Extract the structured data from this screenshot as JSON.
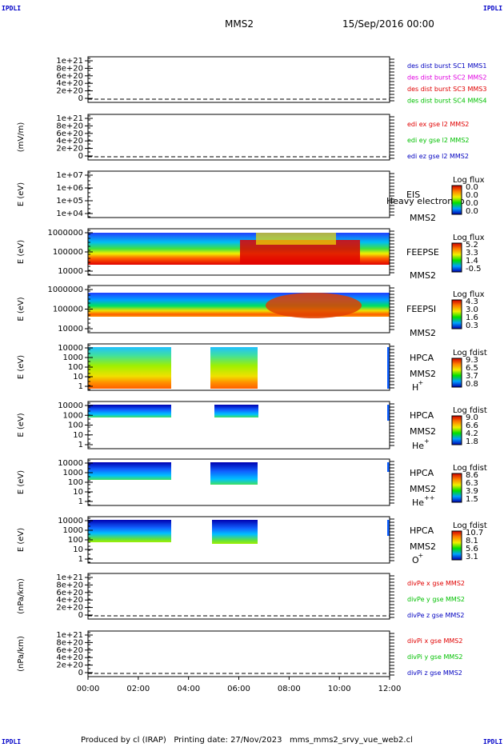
{
  "corners": {
    "tl": "IPDLI",
    "tr": "IPDLI",
    "bl": "IPDLI",
    "br": "IPDLI"
  },
  "header": {
    "title": "MMS2",
    "date": "15/Sep/2016 00:00"
  },
  "footer": {
    "text": "Produced by cl (IRAP)   Printing date: 27/Nov/2023   mms_mms2_srvy_vue_web2.cl"
  },
  "colors": {
    "red": "#e00000",
    "green": "#00c000",
    "blue": "#0000c0",
    "magenta": "#e000e0"
  },
  "chart_data": [
    {
      "type": "line",
      "panel": "density",
      "ylabel": "",
      "yticks": [
        "1e+21",
        "8e+20",
        "6e+20",
        "4e+20",
        "2e+20",
        "0"
      ],
      "series": [
        {
          "name": "des dist burst SC1 MMS1",
          "color": "#0000c0"
        },
        {
          "name": "des dist burst SC2 MMS2",
          "color": "#e000e0"
        },
        {
          "name": "des dist burst SC3 MMS3",
          "color": "#e00000"
        },
        {
          "name": "des dist burst SC4 MMS4",
          "color": "#00c000"
        }
      ]
    },
    {
      "type": "line",
      "panel": "edi",
      "ylabel": "(mV/m)",
      "yticks": [
        "1e+21",
        "8e+20",
        "6e+20",
        "4e+20",
        "2e+20",
        "0"
      ],
      "series": [
        {
          "name": "edi ex gse l2 MMS2",
          "color": "#e00000"
        },
        {
          "name": "edi ey gse l2 MMS2",
          "color": "#00c000"
        },
        {
          "name": "edi ez gse l2 MMS2",
          "color": "#0000c0"
        }
      ]
    },
    {
      "type": "heatmap",
      "panel": "eis",
      "ylabel": "E (eV)",
      "yticks": [
        "1e+07",
        "1e+06",
        "1e+05",
        "1e+04"
      ],
      "label": "EIS",
      "sublabel": "MMS2",
      "extra": "Heavy electron to",
      "cbar_title": "Log flux",
      "cbar_ticks": [
        "0.0",
        "0.0",
        "0.0",
        "0.0"
      ]
    },
    {
      "type": "heatmap",
      "panel": "feepse",
      "ylabel": "E (eV)",
      "yticks": [
        "1000000",
        "100000",
        "10000"
      ],
      "label": "FEEPSE",
      "sublabel": "MMS2",
      "cbar_title": "Log flux",
      "cbar_ticks": [
        "5.2",
        "3.3",
        "1.4",
        "-0.5"
      ]
    },
    {
      "type": "heatmap",
      "panel": "feepsi",
      "ylabel": "E (eV)",
      "yticks": [
        "1000000",
        "100000",
        "10000"
      ],
      "label": "FEEPSI",
      "sublabel": "MMS2",
      "cbar_title": "Log flux",
      "cbar_ticks": [
        "4.3",
        "3.0",
        "1.6",
        "0.3"
      ]
    },
    {
      "type": "heatmap",
      "panel": "hpca_h",
      "ylabel": "E (eV)",
      "yticks": [
        "10000",
        "1000",
        "100",
        "10",
        "1"
      ],
      "label": "HPCA",
      "sublabel": "MMS2",
      "species": "H",
      "charge": "+",
      "cbar_title": "Log fdist",
      "cbar_ticks": [
        "9.3",
        "6.5",
        "3.7",
        "0.8"
      ]
    },
    {
      "type": "heatmap",
      "panel": "hpca_he",
      "ylabel": "E (eV)",
      "yticks": [
        "10000",
        "1000",
        "100",
        "10",
        "1"
      ],
      "label": "HPCA",
      "sublabel": "MMS2",
      "species": "He",
      "charge": "+",
      "cbar_title": "Log fdist",
      "cbar_ticks": [
        "9.0",
        "6.6",
        "4.2",
        "1.8"
      ]
    },
    {
      "type": "heatmap",
      "panel": "hpca_hepp",
      "ylabel": "E (eV)",
      "yticks": [
        "10000",
        "1000",
        "100",
        "10",
        "1"
      ],
      "label": "HPCA",
      "sublabel": "MMS2",
      "species": "He",
      "charge": "++",
      "cbar_title": "Log fdist",
      "cbar_ticks": [
        "8.6",
        "6.3",
        "3.9",
        "1.5"
      ]
    },
    {
      "type": "heatmap",
      "panel": "hpca_o",
      "ylabel": "E (eV)",
      "yticks": [
        "10000",
        "1000",
        "100",
        "10",
        "1"
      ],
      "label": "HPCA",
      "sublabel": "MMS2",
      "species": "O",
      "charge": "+",
      "cbar_title": "Log fdist",
      "cbar_ticks": [
        "10.7",
        "8.1",
        "5.6",
        "3.1"
      ]
    },
    {
      "type": "line",
      "panel": "divpe",
      "ylabel": "(nPa/km)",
      "yticks": [
        "1e+21",
        "8e+20",
        "6e+20",
        "4e+20",
        "2e+20",
        "0"
      ],
      "series": [
        {
          "name": "divPe x gse MMS2",
          "color": "#e00000"
        },
        {
          "name": "divPe y gse MMS2",
          "color": "#00c000"
        },
        {
          "name": "divPe z gse MMS2",
          "color": "#0000c0"
        }
      ]
    },
    {
      "type": "line",
      "panel": "divpi",
      "ylabel": "(nPa/km)",
      "yticks": [
        "1e+21",
        "8e+20",
        "6e+20",
        "4e+20",
        "2e+20",
        "0"
      ],
      "series": [
        {
          "name": "divPi x gse MMS2",
          "color": "#e00000"
        },
        {
          "name": "divPi y gse MMS2",
          "color": "#00c000"
        },
        {
          "name": "divPi z gse MMS2",
          "color": "#0000c0"
        }
      ]
    }
  ],
  "xaxis": {
    "ticks": [
      "00:00",
      "02:00",
      "04:00",
      "06:00",
      "08:00",
      "10:00",
      "12:00"
    ]
  }
}
